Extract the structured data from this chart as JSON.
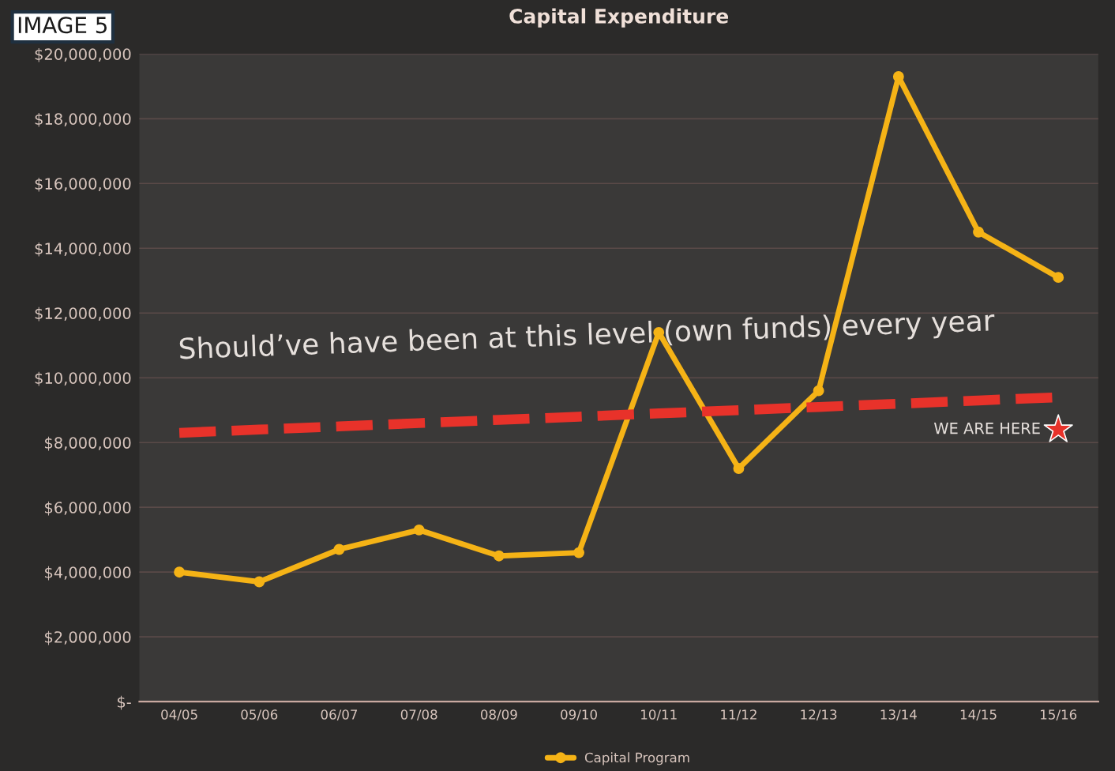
{
  "chart_data": {
    "type": "line",
    "title": "Capital Expenditure",
    "categories": [
      "04/05",
      "05/06",
      "06/07",
      "07/08",
      "08/09",
      "09/10",
      "10/11",
      "11/12",
      "12/13",
      "13/14",
      "14/15",
      "15/16"
    ],
    "series": [
      {
        "name": "Capital Program",
        "color": "#f5b316",
        "values": [
          4000000,
          3700000,
          4700000,
          5300000,
          4500000,
          4600000,
          11400000,
          7200000,
          9600000,
          19300000,
          14500000,
          13100000
        ],
        "marker": "circle",
        "line_style": "solid"
      },
      {
        "type": "line",
        "color": "#e8322a",
        "values": [
          8300000,
          8400000,
          8500000,
          8600000,
          8700000,
          8800000,
          8900000,
          9000000,
          9100000,
          9200000,
          9300000,
          9400000
        ],
        "marker": "none",
        "line_style": "dashed"
      },
      {
        "type": "scatter",
        "color": "#e8322a",
        "values": [
          null,
          null,
          null,
          null,
          null,
          null,
          null,
          null,
          null,
          null,
          null,
          8400000
        ],
        "marker": "star"
      }
    ],
    "ylim": [
      0,
      20000000
    ],
    "yticks": [
      {
        "value": 0,
        "label": "$-"
      },
      {
        "value": 2000000,
        "label": "$2,000,000"
      },
      {
        "value": 4000000,
        "label": "$4,000,000"
      },
      {
        "value": 6000000,
        "label": "$6,000,000"
      },
      {
        "value": 8000000,
        "label": "$8,000,000"
      },
      {
        "value": 10000000,
        "label": "$10,000,000"
      },
      {
        "value": 12000000,
        "label": "$12,000,000"
      },
      {
        "value": 14000000,
        "label": "$14,000,000"
      },
      {
        "value": 16000000,
        "label": "$16,000,000"
      },
      {
        "value": 18000000,
        "label": "$18,000,000"
      },
      {
        "value": 20000000,
        "label": "$20,000,000"
      }
    ],
    "grid": "y",
    "legend": "bottom",
    "annotations": [
      "IMAGE 5",
      "Should’ve have been at this level (own funds) every year",
      {
        "text": "WE ARE HERE",
        "x": "15/16",
        "y": 8400000
      }
    ]
  }
}
